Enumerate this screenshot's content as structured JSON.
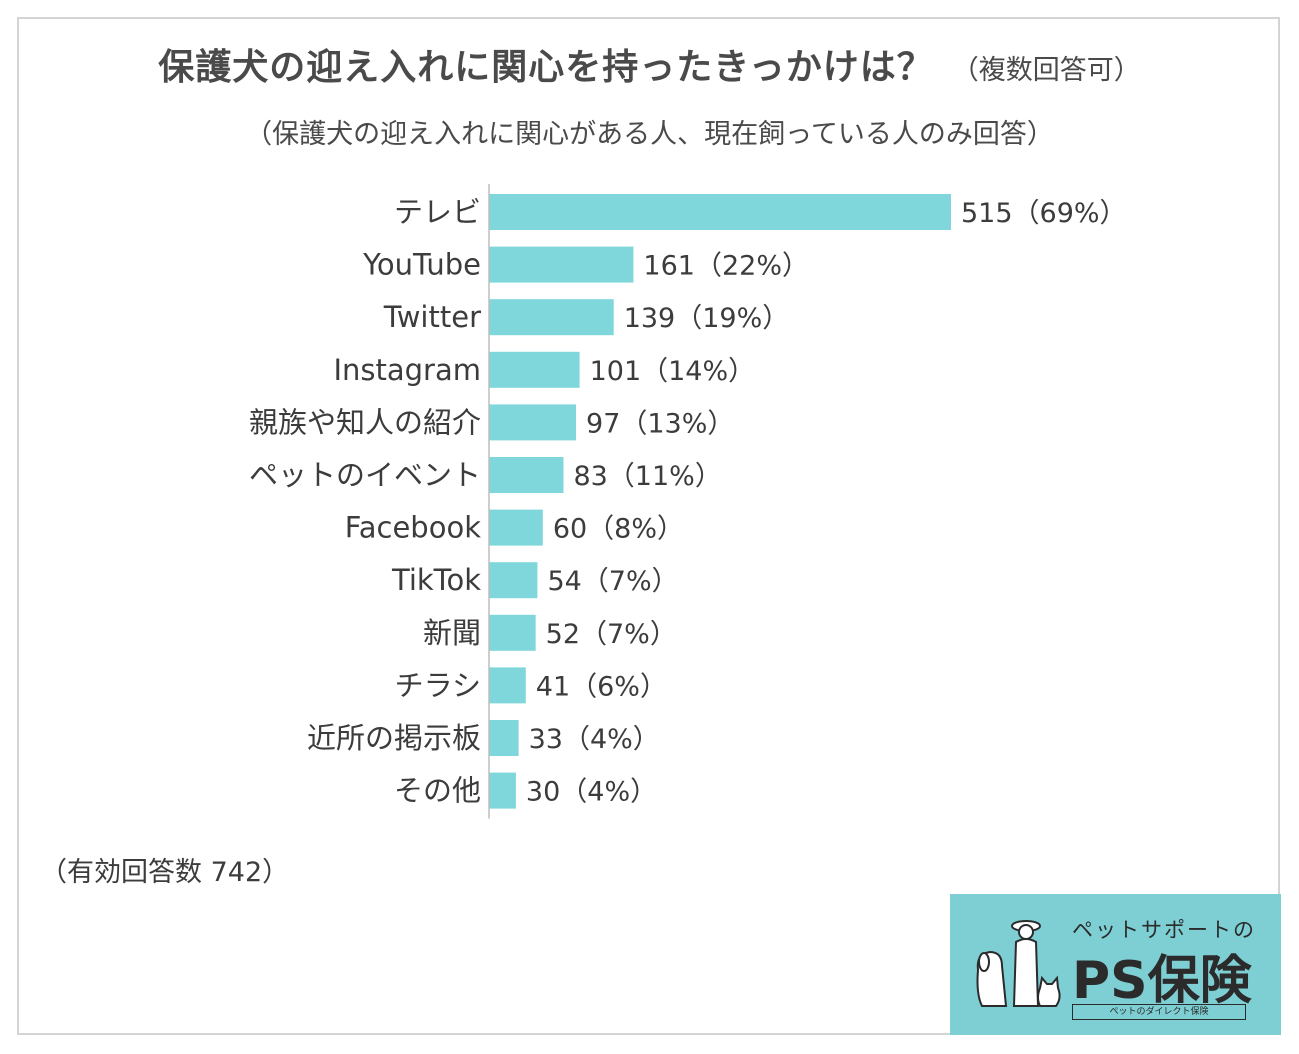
{
  "title": "保護犬の迎え入れに関心を持ったきっかけは？",
  "title_note": "（複数回答可）",
  "subtitle": "（保護犬の迎え入れに関心がある人、現在飼っている人のみ回答）",
  "footnote": "（有効回答数 742）",
  "colors": {
    "bar": "#7fd7db",
    "axis": "#bdbdbd",
    "text": "#3c3c3c",
    "logo_bg": "#7ecfd4"
  },
  "chart_data": {
    "type": "bar",
    "orientation": "horizontal",
    "categories": [
      "テレビ",
      "YouTube",
      "Twitter",
      "Instagram",
      "親族や知人の紹介",
      "ペットのイベント",
      "Facebook",
      "TikTok",
      "新聞",
      "チラシ",
      "近所の掲示板",
      "その他"
    ],
    "values": [
      515,
      161,
      139,
      101,
      97,
      83,
      60,
      54,
      52,
      41,
      33,
      30
    ],
    "data_labels": [
      "515（69%）",
      "161（22%）",
      "139（19%）",
      "101（14%）",
      "97（13%）",
      "83（11%）",
      "60（8%）",
      "54（7%）",
      "52（7%）",
      "41（6%）",
      "33（4%）",
      "30（4%）"
    ],
    "xlim": [
      0,
      515
    ],
    "grid": false,
    "title": "保護犬の迎え入れに関心を持ったきっかけは？",
    "xlabel": "",
    "ylabel": ""
  },
  "logo": {
    "top_text": "ペットサポートの",
    "main_text": "PS保険",
    "tagline": "ペットのダイレクト保険",
    "icon": "dog-and-cat-illustration"
  }
}
